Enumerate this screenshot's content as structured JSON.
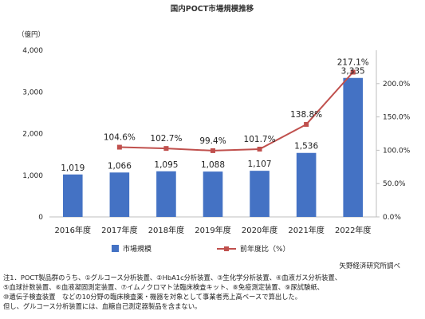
{
  "chart_data": {
    "type": "bar+line",
    "title": "国内POCT市場規模推移",
    "y_unit_label": "（億円）",
    "categories": [
      "2016年度",
      "2017年度",
      "2018年度",
      "2019年度",
      "2020年度",
      "2021年度",
      "2022年度"
    ],
    "series": [
      {
        "name": "市場規模",
        "type": "bar",
        "axis": "left",
        "values": [
          1019,
          1066,
          1095,
          1088,
          1107,
          1536,
          3335
        ],
        "labels": [
          "1,019",
          "1,066",
          "1,095",
          "1,088",
          "1,107",
          "1,536",
          "3,335"
        ],
        "color": "#4472C4"
      },
      {
        "name": "前年度比（%）",
        "type": "line",
        "axis": "right",
        "values": [
          null,
          104.6,
          102.7,
          99.4,
          101.7,
          138.8,
          217.1
        ],
        "labels": [
          "",
          "104.6%",
          "102.7%",
          "99.4%",
          "101.7%",
          "138.8%",
          "217.1%"
        ],
        "color": "#C0504D"
      }
    ],
    "y_left": {
      "range": [
        0,
        4000
      ],
      "ticks": [
        "0",
        "1,000",
        "2,000",
        "3,000",
        "4,000"
      ]
    },
    "y_right": {
      "range": [
        0,
        250
      ],
      "ticks": [
        "0.0%",
        "50.0%",
        "100.0%",
        "150.0%",
        "200.0%"
      ]
    },
    "grid": false,
    "legend_position": "bottom-center",
    "source": "矢野経済研究所調べ"
  },
  "notes": [
    "注1．POCT製品群のうち、①グルコース分析装置、②HbA1c分析装置、③生化学分析装置、④血液ガス分析装置、",
    "⑤血球計数装置、⑥血液凝固測定装置、⑦イムノクロマト法臨床検査キット、⑧免疫測定装置、⑨尿試験紙、",
    "⑩遺伝子検査装置　などの10分野の臨床検査薬・機器を対象として事業者売上高ベースで算出した。",
    "但し、グルコース分析装置には、血糖自己測定器製品を含まない。"
  ]
}
